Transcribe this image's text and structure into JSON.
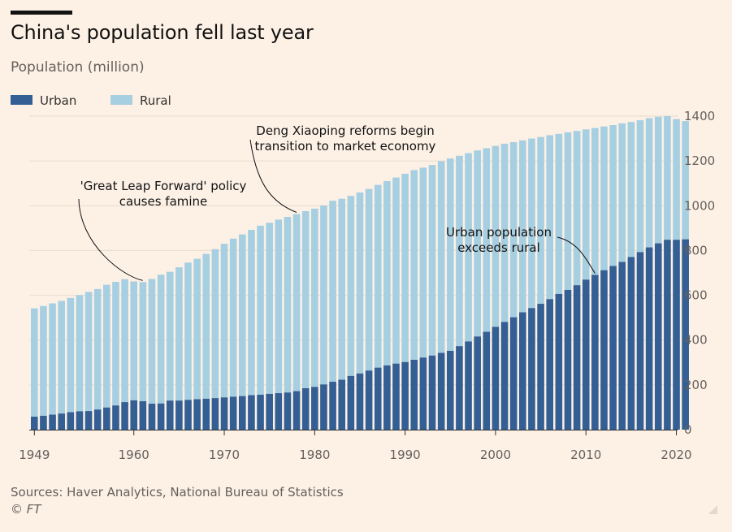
{
  "chart_data": {
    "type": "bar",
    "stacked": true,
    "title": "China's population fell last year",
    "subtitle": "Population (million)",
    "ylim": [
      0,
      1400
    ],
    "yticks": [
      0,
      200,
      400,
      600,
      800,
      1000,
      1200,
      1400
    ],
    "xticks": [
      1949,
      1960,
      1970,
      1980,
      1990,
      2000,
      2010,
      2020
    ],
    "x": [
      1949,
      1950,
      1951,
      1952,
      1953,
      1954,
      1955,
      1956,
      1957,
      1958,
      1959,
      1960,
      1961,
      1962,
      1963,
      1964,
      1965,
      1966,
      1967,
      1968,
      1969,
      1970,
      1971,
      1972,
      1973,
      1974,
      1975,
      1976,
      1977,
      1978,
      1979,
      1980,
      1981,
      1982,
      1983,
      1984,
      1985,
      1986,
      1987,
      1988,
      1989,
      1990,
      1991,
      1992,
      1993,
      1994,
      1995,
      1996,
      1997,
      1998,
      1999,
      2000,
      2001,
      2002,
      2003,
      2004,
      2005,
      2006,
      2007,
      2008,
      2009,
      2010,
      2011,
      2012,
      2013,
      2014,
      2015,
      2016,
      2017,
      2018,
      2019,
      2020,
      2021
    ],
    "series": [
      {
        "name": "Urban",
        "color": "#335f95",
        "values": [
          58,
          62,
          67,
          72,
          78,
          82,
          83,
          90,
          99,
          108,
          123,
          131,
          127,
          116,
          117,
          130,
          130,
          133,
          136,
          138,
          141,
          144,
          147,
          150,
          154,
          156,
          160,
          163,
          166,
          172,
          185,
          191,
          202,
          214,
          223,
          240,
          251,
          264,
          277,
          287,
          295,
          302,
          312,
          322,
          331,
          343,
          352,
          373,
          394,
          416,
          437,
          459,
          481,
          502,
          524,
          543,
          562,
          583,
          606,
          624,
          645,
          670,
          691,
          712,
          731,
          749,
          771,
          793,
          814,
          832,
          848,
          848,
          850
        ]
      },
      {
        "name": "Rural",
        "color": "#a7cfe2",
        "values": [
          484,
          490,
          497,
          503,
          510,
          519,
          532,
          538,
          548,
          552,
          549,
          531,
          532,
          557,
          575,
          575,
          595,
          613,
          627,
          647,
          665,
          686,
          706,
          722,
          738,
          755,
          764,
          775,
          784,
          791,
          791,
          796,
          799,
          808,
          808,
          804,
          808,
          811,
          816,
          823,
          831,
          841,
          847,
          848,
          851,
          856,
          859,
          850,
          841,
          831,
          820,
          808,
          796,
          782,
          768,
          757,
          745,
          732,
          715,
          704,
          689,
          671,
          656,
          642,
          629,
          619,
          603,
          589,
          577,
          565,
          552,
          539,
          528
        ]
      }
    ],
    "legend": {
      "placement": "top-left",
      "entries": [
        "Urban",
        "Rural"
      ]
    },
    "annotations": [
      {
        "lines": [
          "'Great Leap Forward' policy",
          "causes famine"
        ],
        "year": 1961
      },
      {
        "lines": [
          "Deng Xiaoping reforms begin",
          "transition to market economy"
        ],
        "year": 1978
      },
      {
        "lines": [
          "Urban population",
          "exceeds rural"
        ],
        "year": 2011
      }
    ]
  },
  "footer": {
    "sources": "Sources: Haver Analytics, National Bureau of Statistics",
    "credit": "© FT"
  },
  "colors": {
    "background": "#fdf1e6",
    "gridline": "#e8dccf",
    "text": "#33302e"
  }
}
